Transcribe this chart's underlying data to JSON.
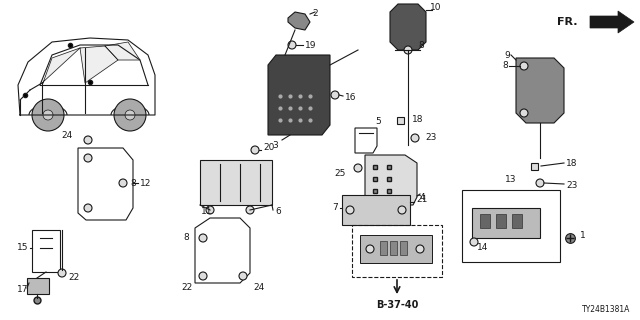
{
  "bg_color": "#ffffff",
  "line_color": "#1a1a1a",
  "diagram_ref": "TY24B1381A",
  "figw": 6.4,
  "figh": 3.2,
  "dpi": 100
}
